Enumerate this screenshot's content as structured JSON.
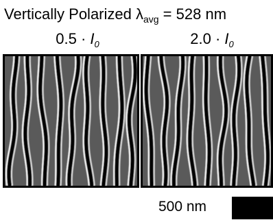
{
  "figure": {
    "title_prefix": "Vertically Polarized λ",
    "title_sub": "avg",
    "title_suffix": " = 528 nm",
    "panels": [
      {
        "factor": "0.5 · ",
        "symbol": "I",
        "symbol_sub": "0"
      },
      {
        "factor": "2.0 · ",
        "symbol": "I",
        "symbol_sub": "0"
      }
    ],
    "scale_bar": {
      "label": "500 nm"
    }
  }
}
